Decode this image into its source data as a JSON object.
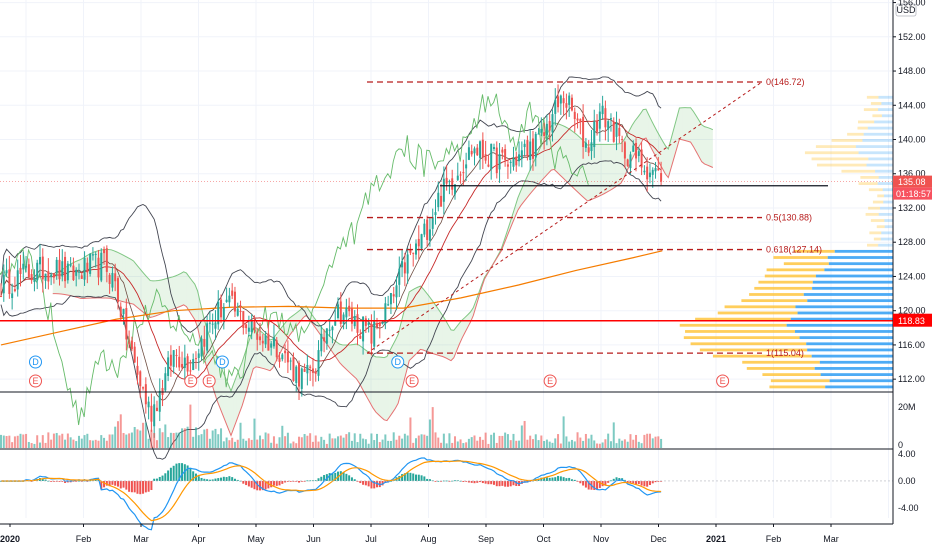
{
  "chart_data": {
    "type": "candlestick",
    "currency": "USD",
    "price_axis": {
      "ylim": [
        110.5,
        156.3
      ],
      "ticks": [
        "112.00",
        "116.00",
        "120.00",
        "124.00",
        "128.00",
        "132.00",
        "136.00",
        "140.00",
        "144.00",
        "148.00",
        "152.00",
        "156.00"
      ]
    },
    "volume_axis": {
      "ticks": [
        "20M",
        "0"
      ]
    },
    "macd_axis": {
      "ticks": [
        "4.00",
        "0.00",
        "-4.00"
      ],
      "ylim": [
        -5.5,
        4.6
      ]
    },
    "time_axis": [
      "2020",
      "Feb",
      "Mar",
      "Apr",
      "May",
      "Jun",
      "Jul",
      "Aug",
      "Sep",
      "Oct",
      "Nov",
      "Dec",
      "2021",
      "Feb",
      "Mar"
    ],
    "last_price": "135.08",
    "countdown": "01:18:57",
    "horizontal_level": "118.83",
    "support_level": 134.6,
    "fib_levels": [
      {
        "label": "0(146.72)",
        "value": 146.72
      },
      {
        "label": "0.5(130.88)",
        "value": 130.88
      },
      {
        "label": "0.618(127.14)",
        "value": 127.14
      },
      {
        "label": "1(115.04)",
        "value": 115.04
      }
    ],
    "events": [
      {
        "type": "D",
        "month": 0.6
      },
      {
        "type": "E",
        "month": 0.6
      },
      {
        "type": "E",
        "month": 3.3
      },
      {
        "type": "E",
        "month": 3.62
      },
      {
        "type": "D",
        "month": 3.85
      },
      {
        "type": "D",
        "month": 6.9
      },
      {
        "type": "E",
        "month": 7.15
      },
      {
        "type": "E",
        "month": 9.55
      },
      {
        "type": "E",
        "month": 12.55
      }
    ],
    "colors": {
      "up": "#26a69a",
      "down": "#ef5350",
      "macd": "#2196f3",
      "signal": "#ff9800",
      "ma200": "#f57c00",
      "bollinger": "#434651",
      "cloud_green": "#4caf50",
      "cloud_red": "#ef5350",
      "fib": "#b71c1c",
      "level": "#ff0000",
      "vp_up": "#2196f3",
      "vp_down": "#ffc233"
    },
    "series": [
      {
        "type": "price",
        "points": [
          [
            0,
            123
          ],
          [
            0.5,
            124.5
          ],
          [
            0.9,
            125
          ],
          [
            1.2,
            124
          ],
          [
            1.5,
            125
          ],
          [
            1.8,
            125.5
          ],
          [
            2.0,
            123
          ],
          [
            2.15,
            118
          ],
          [
            2.35,
            113
          ],
          [
            2.6,
            108
          ],
          [
            2.8,
            111
          ],
          [
            3.0,
            115
          ],
          [
            3.3,
            114
          ],
          [
            3.6,
            118
          ],
          [
            3.9,
            121
          ],
          [
            4.2,
            119
          ],
          [
            4.5,
            117
          ],
          [
            4.8,
            116
          ],
          [
            5.1,
            113
          ],
          [
            5.3,
            112
          ],
          [
            5.5,
            114
          ],
          [
            5.7,
            119
          ],
          [
            5.9,
            120
          ],
          [
            6.1,
            119
          ],
          [
            6.3,
            118
          ],
          [
            6.45,
            117
          ],
          [
            6.6,
            119
          ],
          [
            6.8,
            121
          ],
          [
            7.0,
            125
          ],
          [
            7.3,
            128
          ],
          [
            7.6,
            133
          ],
          [
            7.9,
            136
          ],
          [
            8.2,
            139
          ],
          [
            8.5,
            138
          ],
          [
            8.8,
            137
          ],
          [
            9.1,
            138.5
          ],
          [
            9.4,
            140
          ],
          [
            9.6,
            143
          ],
          [
            9.8,
            145
          ],
          [
            10.0,
            142
          ],
          [
            10.2,
            139
          ],
          [
            10.4,
            143
          ],
          [
            10.6,
            142
          ],
          [
            10.8,
            139
          ],
          [
            11.0,
            138
          ],
          [
            11.2,
            137
          ],
          [
            11.4,
            136
          ],
          [
            11.48,
            135.08
          ]
        ]
      },
      {
        "type": "ma200",
        "points": [
          [
            0,
            116
          ],
          [
            1,
            117.5
          ],
          [
            2,
            119
          ],
          [
            3,
            120
          ],
          [
            4,
            120.4
          ],
          [
            5,
            120.5
          ],
          [
            6,
            120.3
          ],
          [
            7,
            120.3
          ],
          [
            8,
            121.5
          ],
          [
            9,
            123
          ],
          [
            10,
            124.7
          ],
          [
            11,
            126.2
          ],
          [
            11.5,
            127
          ]
        ]
      }
    ]
  }
}
